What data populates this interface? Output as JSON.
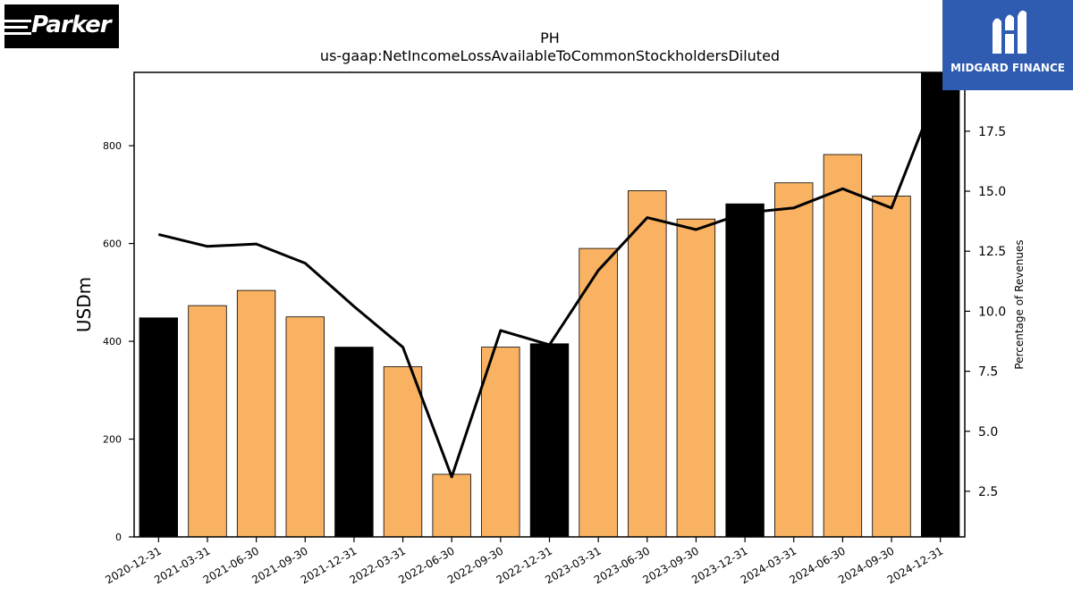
{
  "chart_data": {
    "type": "bar",
    "title": "PH",
    "subtitle": "us-gaap:NetIncomeLossAvailableToCommonStockholdersDiluted",
    "ylabel": "USDm",
    "y2label": "Percentage of Revenues",
    "ylim": [
      0,
      950
    ],
    "y2lim": [
      0.6,
      19.95
    ],
    "yticks": [
      "0",
      "200",
      "400",
      "600",
      "800"
    ],
    "y2ticks": [
      "2.5",
      "5.0",
      "7.5",
      "10.0",
      "12.5",
      "15.0",
      "17.5"
    ],
    "categories": [
      "2020-12-31",
      "2021-03-31",
      "2021-06-30",
      "2021-09-30",
      "2021-12-31",
      "2022-03-31",
      "2022-06-30",
      "2022-09-30",
      "2022-12-31",
      "2023-03-31",
      "2023-06-30",
      "2023-09-30",
      "2023-12-31",
      "2024-03-31",
      "2024-06-30",
      "2024-09-30",
      "2024-12-31"
    ],
    "series": [
      {
        "type": "bar",
        "axis": "left",
        "values": [
          448,
          473,
          504,
          450,
          388,
          348,
          128,
          388,
          395,
          590,
          708,
          650,
          681,
          724,
          782,
          697,
          950
        ],
        "colors": [
          "#000000",
          "#f9b262",
          "#f9b262",
          "#f9b262",
          "#000000",
          "#f9b262",
          "#f9b262",
          "#f9b262",
          "#000000",
          "#f9b262",
          "#f9b262",
          "#f9b262",
          "#000000",
          "#f9b262",
          "#f9b262",
          "#f9b262",
          "#000000"
        ]
      },
      {
        "type": "line",
        "axis": "right",
        "color": "#000000",
        "values": [
          13.2,
          12.7,
          12.8,
          12.0,
          10.2,
          8.5,
          3.1,
          9.2,
          8.6,
          11.7,
          13.9,
          13.4,
          14.1,
          14.3,
          15.1,
          14.3,
          19.5
        ]
      }
    ],
    "grid": false,
    "legend": "none"
  },
  "logos": {
    "left": "Parker",
    "right": "MIDGARD FINANCE"
  }
}
